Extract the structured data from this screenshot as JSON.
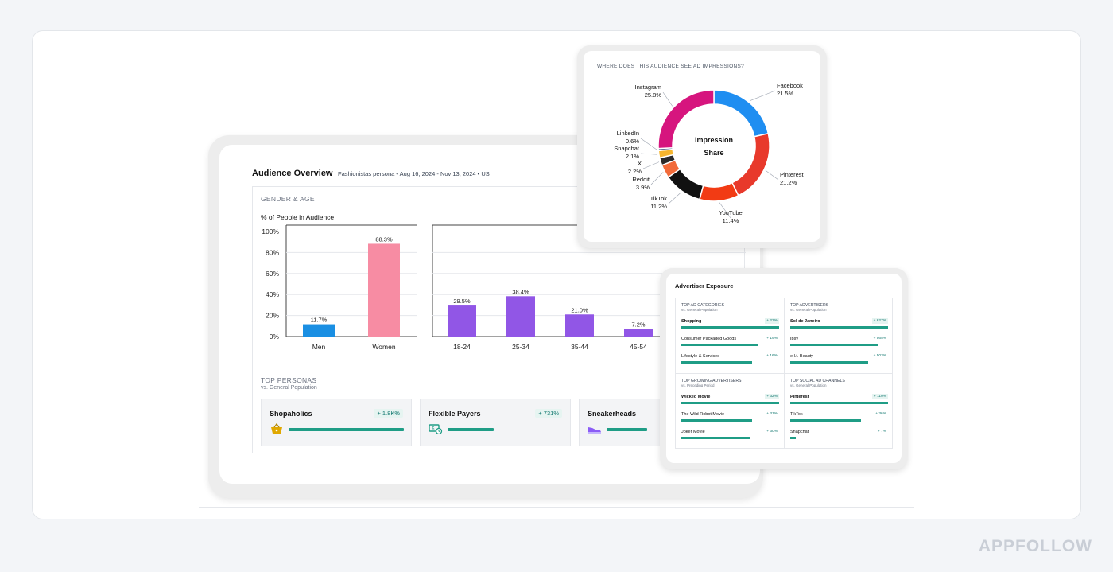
{
  "brand": "APPFOLLOW",
  "overview": {
    "title": "Audience Overview",
    "subtitle": "Fashionistas persona • Aug 16, 2024 - Nov 13, 2024 • US",
    "gender_age_label": "GENDER & AGE",
    "metric_label": "% of People in Audience"
  },
  "chart_data": [
    {
      "type": "bar",
      "categories": [
        "Men",
        "Women"
      ],
      "values": [
        11.7,
        88.3
      ],
      "value_labels": [
        "11.7%",
        "88.3%"
      ],
      "colors": [
        "#1a8fe3",
        "#f78ca3"
      ],
      "ylim": [
        0,
        100
      ],
      "y_ticks": [
        "0%",
        "20%",
        "40%",
        "60%",
        "80%",
        "100%"
      ]
    },
    {
      "type": "bar",
      "categories": [
        "18-24",
        "25-34",
        "35-44",
        "45-54"
      ],
      "values": [
        29.5,
        38.4,
        21.0,
        7.2
      ],
      "value_labels": [
        "29.5%",
        "38.4%",
        "21.0%",
        "7.2%"
      ],
      "colors": [
        "#9156e6",
        "#9156e6",
        "#9156e6",
        "#9156e6"
      ],
      "ylim": [
        0,
        100
      ]
    },
    {
      "type": "pie",
      "title": "WHERE DOES THIS AUDIENCE SEE AD IMPRESSIONS?",
      "center_label": [
        "Impression",
        "Share"
      ],
      "slices": [
        {
          "name": "Facebook",
          "label": "21.5%",
          "value": 21.5,
          "color": "#1f8ef1"
        },
        {
          "name": "Pinterest",
          "label": "21.2%",
          "value": 21.2,
          "color": "#e8392b"
        },
        {
          "name": "YouTube",
          "label": "11.4%",
          "value": 11.4,
          "color": "#f23b14"
        },
        {
          "name": "TikTok",
          "label": "11.2%",
          "value": 11.2,
          "color": "#111111"
        },
        {
          "name": "Reddit",
          "label": "3.9%",
          "value": 3.9,
          "color": "#f26b3a"
        },
        {
          "name": "X",
          "label": "2.2%",
          "value": 2.2,
          "color": "#2b2b2b"
        },
        {
          "name": "Snapchat",
          "label": "2.1%",
          "value": 2.1,
          "color": "#f5b52e"
        },
        {
          "name": "LinkedIn",
          "label": "0.6%",
          "value": 0.6,
          "color": "#4a5b86"
        },
        {
          "name": "Instagram",
          "label": "25.8%",
          "value": 25.8,
          "color": "#d6157e"
        }
      ]
    }
  ],
  "personas": {
    "title": "TOP PERSONAS",
    "subtitle": "vs. General Population",
    "items": [
      {
        "name": "Shopaholics",
        "delta": "+ 1.8K%",
        "icon": "shopping-basket-icon",
        "fill": 1.0
      },
      {
        "name": "Flexible Payers",
        "delta": "+ 731%",
        "icon": "money-clock-icon",
        "fill": 0.4
      },
      {
        "name": "Sneakerheads",
        "delta": "",
        "icon": "sneaker-icon",
        "fill": 0.35
      }
    ]
  },
  "advertiser": {
    "title": "Advertiser Exposure",
    "sections": [
      {
        "title": "TOP AD CATEGORIES",
        "subtitle": "vs. General Population",
        "rows": [
          {
            "name": "Shopping",
            "value": "+ 23%",
            "fill": 1.0,
            "bold": true
          },
          {
            "name": "Consumer Packaged Goods",
            "value": "+ 19%",
            "fill": 0.78,
            "bold": false
          },
          {
            "name": "Lifestyle & Services",
            "value": "+ 16%",
            "fill": 0.72,
            "bold": false
          }
        ]
      },
      {
        "title": "TOP ADVERTISERS",
        "subtitle": "vs. General Population",
        "rows": [
          {
            "name": "Sol de Janeiro",
            "value": "+ 627%",
            "fill": 1.0,
            "bold": true
          },
          {
            "name": "Ipsy",
            "value": "+ 565%",
            "fill": 0.9,
            "bold": false
          },
          {
            "name": "e.l.f. Beauty",
            "value": "+ 503%",
            "fill": 0.8,
            "bold": false
          }
        ]
      },
      {
        "title": "TOP GROWING ADVERTISERS",
        "subtitle": "vs. Preceding Period",
        "rows": [
          {
            "name": "Wicked Movie",
            "value": "+ 32%",
            "fill": 1.0,
            "bold": true
          },
          {
            "name": "The Wild Robot Movie",
            "value": "+ 31%",
            "fill": 0.72,
            "bold": false
          },
          {
            "name": "Joker Movie",
            "value": "+ 30%",
            "fill": 0.7,
            "bold": false
          }
        ]
      },
      {
        "title": "TOP SOCIAL AD CHANNELS",
        "subtitle": "vs. General Population",
        "rows": [
          {
            "name": "Pinterest",
            "value": "+ 110%",
            "fill": 1.0,
            "bold": true
          },
          {
            "name": "TikTok",
            "value": "+ 36%",
            "fill": 0.72,
            "bold": false
          },
          {
            "name": "Snapchat",
            "value": "+ 7%",
            "fill": 0.06,
            "bold": false
          }
        ]
      }
    ]
  }
}
